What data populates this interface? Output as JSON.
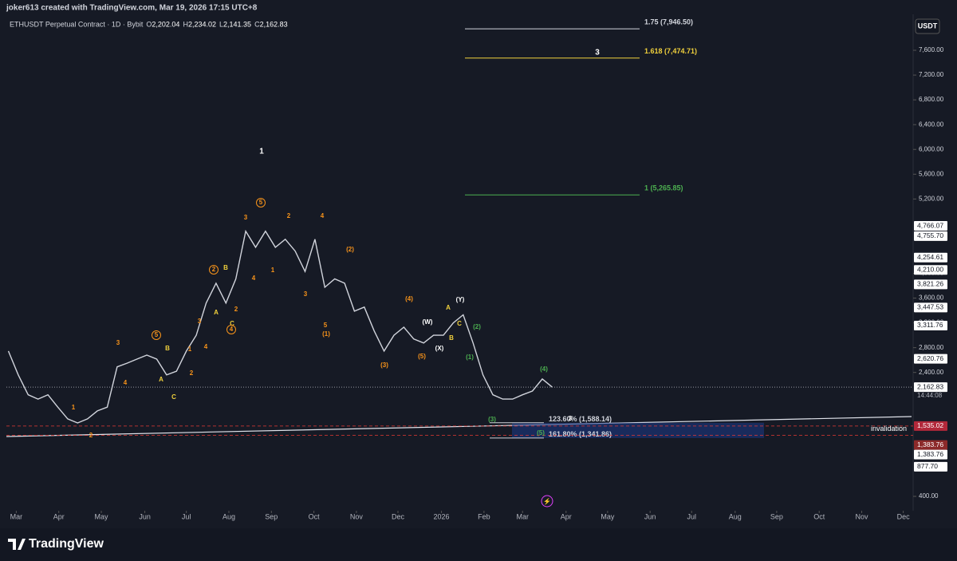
{
  "header": {
    "credit": "joker613 created with TradingView.com, Mar 19, 2026 17:15 UTC+8",
    "symbol": "ETHUSDT Perpetual Contract · 1D · Bybit",
    "ohlc": [
      {
        "key": "O",
        "text": "2,202.04"
      },
      {
        "key": "H",
        "text": "2,234.02"
      },
      {
        "key": "L",
        "text": "2,141.35"
      },
      {
        "key": "C",
        "text": "2,162.83"
      }
    ],
    "currency": "USDT",
    "countdown": "14:44:08"
  },
  "footer": {
    "brand": "TradingView"
  },
  "chart_data": {
    "type": "line",
    "color": "#d1d4dc",
    "x": [
      0,
      1,
      2,
      3,
      4,
      5,
      6,
      7,
      8,
      9,
      10,
      11,
      12,
      13,
      14,
      15,
      16,
      17,
      18,
      19,
      20,
      21,
      22,
      23,
      24,
      25,
      26,
      27,
      28,
      29,
      30,
      31,
      32,
      33,
      34,
      35,
      36,
      37,
      38,
      39,
      40,
      41,
      42,
      43,
      44,
      45,
      46,
      47,
      48,
      49,
      50,
      51,
      52,
      53,
      54,
      55
    ],
    "values": [
      2745,
      2360,
      2040,
      1970,
      2040,
      1840,
      1650,
      1585,
      1650,
      1780,
      1840,
      2490,
      2550,
      2615,
      2680,
      2615,
      2360,
      2420,
      2745,
      3000,
      3520,
      3840,
      3520,
      3910,
      4680,
      4420,
      4680,
      4420,
      4550,
      4360,
      4030,
      4550,
      3775,
      3910,
      3840,
      3390,
      3455,
      3070,
      2745,
      3000,
      3130,
      2940,
      2875,
      3000,
      3000,
      3200,
      3330,
      2875,
      2360,
      2040,
      1970,
      1970,
      2040,
      2100,
      2295,
      2162.83
    ],
    "xlim": [
      -0.2,
      91.5
    ],
    "xticks": [
      {
        "value": 0.8,
        "label": "Mar"
      },
      {
        "value": 5.1,
        "label": "Apr"
      },
      {
        "value": 9.4,
        "label": "May"
      },
      {
        "value": 13.8,
        "label": "Jun"
      },
      {
        "value": 18.0,
        "label": "Jul"
      },
      {
        "value": 22.3,
        "label": "Aug"
      },
      {
        "value": 26.6,
        "label": "Sep"
      },
      {
        "value": 30.9,
        "label": "Oct"
      },
      {
        "value": 35.2,
        "label": "Nov"
      },
      {
        "value": 39.4,
        "label": "Dec"
      },
      {
        "value": 43.8,
        "label": "2026"
      },
      {
        "value": 48.1,
        "label": "Feb"
      },
      {
        "value": 52.0,
        "label": "Mar"
      },
      {
        "value": 56.4,
        "label": "Apr"
      },
      {
        "value": 60.6,
        "label": "May"
      },
      {
        "value": 64.9,
        "label": "Jun"
      },
      {
        "value": 69.1,
        "label": "Jul"
      },
      {
        "value": 73.5,
        "label": "Aug"
      },
      {
        "value": 77.7,
        "label": "Sep"
      },
      {
        "value": 82.0,
        "label": "Oct"
      },
      {
        "value": 86.3,
        "label": "Nov"
      },
      {
        "value": 90.5,
        "label": "Dec"
      }
    ],
    "ylim": [
      168,
      8180
    ],
    "yticks": [
      {
        "value": 400,
        "label": "400.00"
      },
      {
        "value": 2400,
        "label": "2,400.00"
      },
      {
        "value": 2800,
        "label": "2,800.00"
      },
      {
        "value": 3200,
        "label": "3,200.00"
      },
      {
        "value": 3600,
        "label": "3,600.00"
      },
      {
        "value": 4000,
        "label": "4,000.00"
      },
      {
        "value": 5200,
        "label": "5,200.00"
      },
      {
        "value": 5600,
        "label": "5,600.00"
      },
      {
        "value": 6000,
        "label": "6,000.00"
      },
      {
        "value": 6400,
        "label": "6,400.00"
      },
      {
        "value": 6800,
        "label": "6,800.00"
      },
      {
        "value": 7200,
        "label": "7,200.00"
      },
      {
        "value": 7600,
        "label": "7,600.00"
      }
    ],
    "price_labels": [
      {
        "value": 4766.07,
        "label": "4,766.07",
        "color": "#ffffff"
      },
      {
        "value": 4755.7,
        "label": "4,755.70",
        "color": "#ffffff"
      },
      {
        "value": 4254.61,
        "label": "4,254.61",
        "color": "#ffffff"
      },
      {
        "value": 4210.0,
        "label": "4,210.00",
        "color": "#ffffff"
      },
      {
        "value": 3821.26,
        "label": "3,821.26",
        "color": "#ffffff"
      },
      {
        "value": 3447.53,
        "label": "3,447.53",
        "color": "#ffffff"
      },
      {
        "value": 3311.76,
        "label": "3,311.76",
        "color": "#ffffff"
      },
      {
        "value": 2620.76,
        "label": "2,620.76",
        "color": "#ffffff"
      },
      {
        "value": 2162.83,
        "label": "2,162.83",
        "color": "#ffffff"
      },
      {
        "value": 1535.02,
        "label": "1,535.02",
        "color": "#b2283a"
      },
      {
        "value": 1383.76,
        "label": "1,383.76",
        "color": "#8c2a2a"
      },
      {
        "value": 1383.76,
        "label": "1,383.76",
        "color": "#ffffff"
      },
      {
        "value": 877.7,
        "label": "877.70",
        "color": "#ffffff"
      }
    ],
    "fib_levels": [
      {
        "value": 7946.5,
        "label": "1.75 (7,946.50)",
        "color": "#d1d4dc"
      },
      {
        "value": 7474.71,
        "label": "1.618 (7,474.71)",
        "color": "#f0d03c"
      },
      {
        "value": 5265.85,
        "label": "1 (5,265.85)",
        "color": "#4caf50"
      },
      {
        "value": 1588.14,
        "label": "123.60% (1,588.14)",
        "color": "#d1d4dc"
      },
      {
        "value": 1341.86,
        "label": "161.80% (1,341.86)",
        "color": "#d1d4dc"
      }
    ],
    "invalidation": "invalidation",
    "annotations": [
      "1",
      "3",
      "1",
      "2",
      "3",
      "4",
      "5",
      "1",
      "2",
      "B",
      "A",
      "C",
      "2",
      "3",
      "4",
      "B",
      "A",
      "C",
      "4",
      "5",
      "3",
      "4",
      "2",
      "4",
      "1",
      "3",
      "5",
      "(1)",
      "(2)",
      "(3)",
      "(4)",
      "(5)",
      "(W)",
      "(X)",
      "A",
      "B",
      "C",
      "(Y)",
      "(1)",
      "(2)",
      "(3)",
      "(4)",
      "(5)",
      "3",
      "2"
    ]
  }
}
